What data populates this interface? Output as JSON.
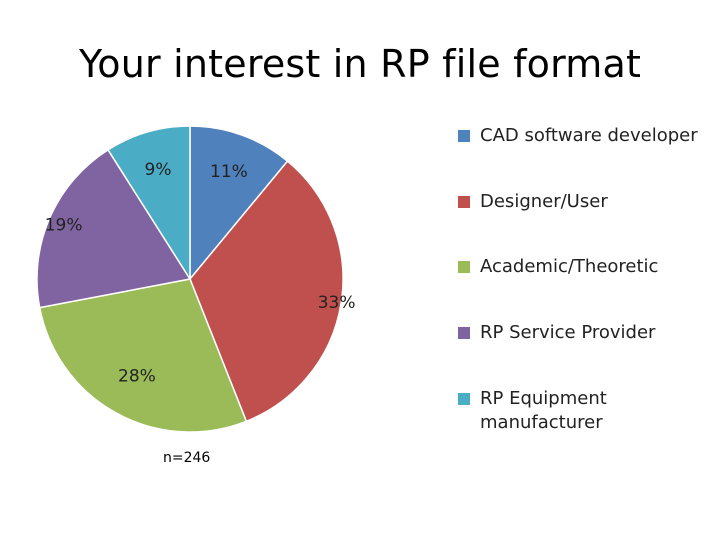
{
  "chart_data": {
    "type": "pie",
    "title": "Your interest in RP file format",
    "slices": [
      {
        "label": "CAD software developer",
        "value": 11,
        "display": "11%",
        "color": "#4f81bd"
      },
      {
        "label": "Designer/User",
        "value": 33,
        "display": "33%",
        "color": "#c0504d"
      },
      {
        "label": "Academic/Theoretic",
        "value": 28,
        "display": "28%",
        "color": "#9bbb59"
      },
      {
        "label": "RP Service Provider",
        "value": 19,
        "display": "19%",
        "color": "#8064a2"
      },
      {
        "label": "RP Equipment manufacturer",
        "value": 9,
        "display": "9%",
        "color": "#4bacc6"
      }
    ],
    "legend_position": "right",
    "note": "n=246"
  }
}
